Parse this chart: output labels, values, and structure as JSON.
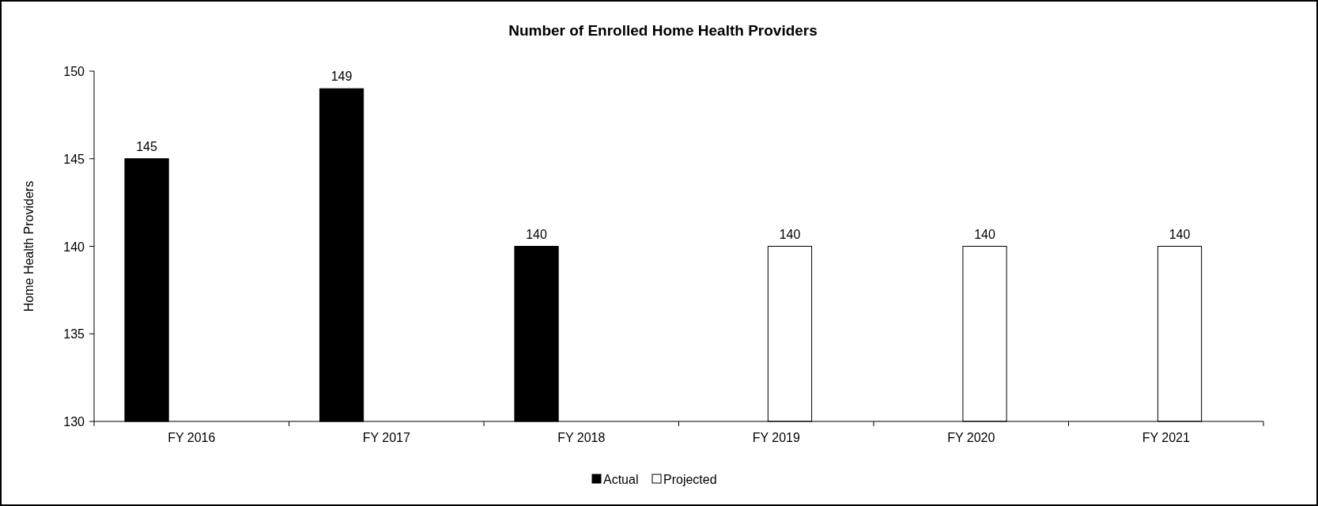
{
  "chart_data": {
    "type": "bar",
    "title": "Number of Enrolled Home Health Providers",
    "ylabel": "Home Health Providers",
    "categories": [
      "FY 2016",
      "FY 2017",
      "FY 2018",
      "FY 2019",
      "FY 2020",
      "FY 2021"
    ],
    "series": [
      {
        "name": "Actual",
        "color": "#000000",
        "values": [
          145,
          149,
          140,
          null,
          null,
          null
        ]
      },
      {
        "name": "Projected",
        "color": "#ffffff",
        "values": [
          null,
          null,
          null,
          140,
          140,
          140
        ]
      }
    ],
    "ylim": [
      130,
      150
    ],
    "yticks": [
      130,
      135,
      140,
      145,
      150
    ],
    "data_labels": true,
    "legend": "bottom",
    "grid": false
  }
}
